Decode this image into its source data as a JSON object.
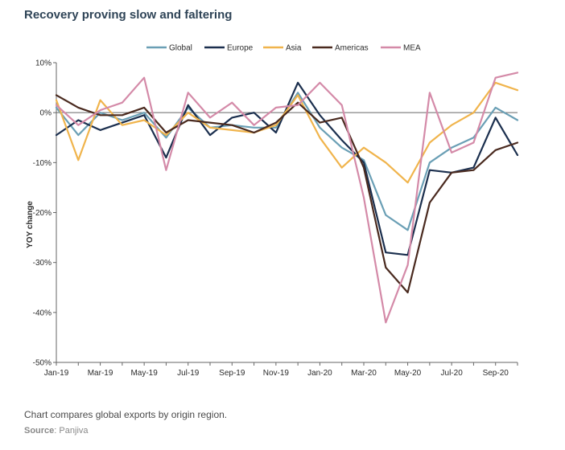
{
  "title": "Recovery proving slow and faltering",
  "caption": "Chart compares global exports by origin region.",
  "source": {
    "label": "Source",
    "text": "Panjiva"
  },
  "colors": {
    "Global": "#6a9fb5",
    "Europe": "#1b2f4e",
    "Asia": "#f0b44c",
    "Americas": "#4a2a1f",
    "MEA": "#d48aa8"
  },
  "chart_data": {
    "type": "line",
    "title": "Recovery proving slow and faltering",
    "xlabel": "",
    "ylabel": "YOY change",
    "ylim": [
      -50,
      10
    ],
    "yticks": [
      10,
      0,
      -10,
      -20,
      -30,
      -40,
      -50
    ],
    "ytick_labels": [
      "10%",
      "0%",
      "-10%",
      "-20%",
      "-30%",
      "-40%",
      "-50%"
    ],
    "categories": [
      "Jan-19",
      "Feb-19",
      "Mar-19",
      "Apr-19",
      "May-19",
      "Jun-19",
      "Jul-19",
      "Aug-19",
      "Sep-19",
      "Oct-19",
      "Nov-19",
      "Dec-19",
      "Jan-20",
      "Feb-20",
      "Mar-20",
      "Apr-20",
      "May-20",
      "Jun-20",
      "Jul-20",
      "Aug-20",
      "Sep-20",
      "Oct-20"
    ],
    "xtick_labels": [
      "Jan-19",
      "Mar-19",
      "May-19",
      "Jul-19",
      "Sep-19",
      "Nov-19",
      "Jan-20",
      "Mar-20",
      "May-20",
      "Jul-20",
      "Sep-20"
    ],
    "legend_position": "top",
    "grid": false,
    "series": [
      {
        "name": "Global",
        "values": [
          1.0,
          -4.5,
          0.0,
          -1.5,
          0.0,
          -5.0,
          1.0,
          -3.0,
          -2.5,
          -3.0,
          -3.0,
          4.0,
          -3.0,
          -7.0,
          -9.5,
          -20.5,
          -23.5,
          -10.0,
          -7.0,
          -5.0,
          1.0,
          -1.5
        ]
      },
      {
        "name": "Europe",
        "values": [
          -4.5,
          -1.5,
          -3.5,
          -2.0,
          -0.5,
          -9.0,
          1.5,
          -4.5,
          -1.0,
          0.0,
          -4.0,
          6.0,
          -0.5,
          -5.5,
          -10.0,
          -28.0,
          -28.5,
          -11.5,
          -12.0,
          -11.0,
          -1.0,
          -8.5
        ]
      },
      {
        "name": "Asia",
        "values": [
          2.5,
          -9.5,
          2.5,
          -2.5,
          -1.5,
          -4.5,
          0.0,
          -3.0,
          -3.5,
          -4.0,
          -2.5,
          3.5,
          -5.0,
          -11.0,
          -7.0,
          -10.0,
          -14.0,
          -6.0,
          -2.5,
          0.0,
          6.0,
          4.5
        ]
      },
      {
        "name": "Americas",
        "values": [
          3.5,
          1.0,
          -0.5,
          -0.5,
          1.0,
          -4.0,
          -1.5,
          -2.0,
          -2.5,
          -4.0,
          -2.0,
          2.0,
          -2.0,
          -1.0,
          -11.0,
          -31.0,
          -36.0,
          -18.0,
          -12.0,
          -11.5,
          -7.5,
          -6.0
        ]
      },
      {
        "name": "MEA",
        "values": [
          1.5,
          -2.5,
          0.5,
          2.0,
          7.0,
          -11.5,
          4.0,
          -1.0,
          2.0,
          -2.5,
          1.0,
          1.5,
          6.0,
          1.5,
          -17.0,
          -42.0,
          -30.5,
          4.0,
          -8.0,
          -6.0,
          7.0,
          8.0
        ]
      }
    ]
  }
}
